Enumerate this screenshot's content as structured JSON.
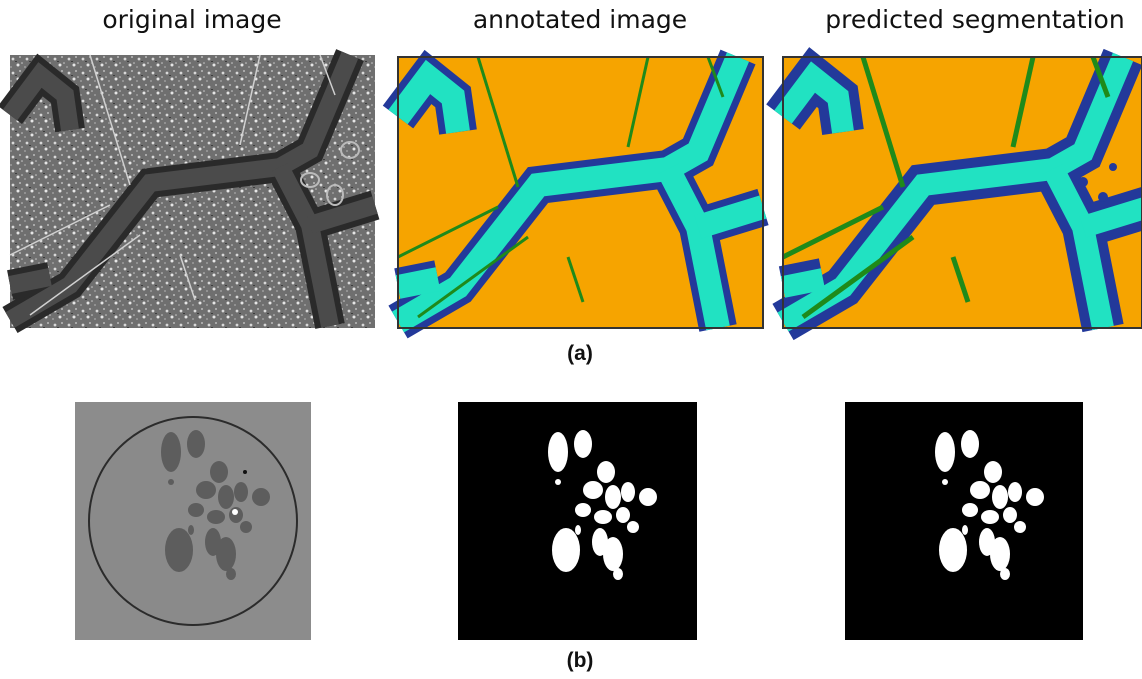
{
  "columns": [
    "original image",
    "annotated image",
    "predicted segmentation"
  ],
  "panels": [
    "(a)",
    "(b)"
  ]
}
